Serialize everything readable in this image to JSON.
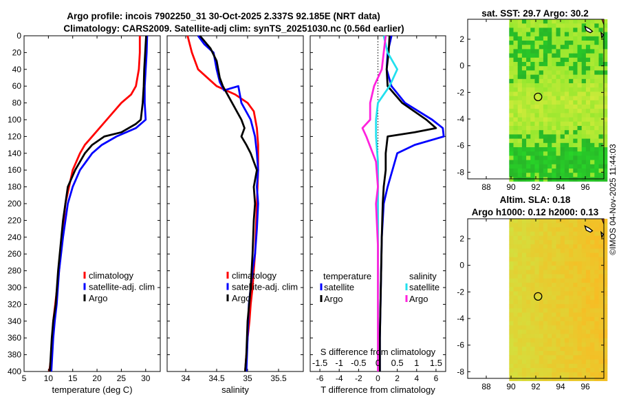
{
  "header": {
    "title_line1": "Argo profile: incois 7902250_31 30-Oct-2025 2.337S 92.185E (NRT data)",
    "title_line2": "Climatology: CARS2009. Satellite-adj clim: synTS_20251030.nc (0.56d earlier)"
  },
  "colors": {
    "climatology": "#ff0000",
    "satellite": "#0000ff",
    "argo": "#000000",
    "sal_satellite": "#22e0ee",
    "sal_argo": "#ff22dd"
  },
  "depth_ticks": [
    "0",
    "20",
    "40",
    "60",
    "80",
    "100",
    "120",
    "140",
    "160",
    "180",
    "200",
    "220",
    "240",
    "260",
    "280",
    "300",
    "320",
    "340",
    "360",
    "380",
    "400"
  ],
  "chart_data": [
    {
      "type": "line",
      "title": "",
      "xlabel": "temperature (deg C)",
      "ylabel": "",
      "xlim": [
        5,
        33
      ],
      "ylim": [
        0,
        400
      ],
      "y_reversed": true,
      "x_ticks": [
        "5",
        "10",
        "15",
        "20",
        "25",
        "30"
      ],
      "legend": [
        "climatology",
        "satellite-adj. clim",
        "Argo"
      ],
      "series": [
        {
          "name": "climatology",
          "color": "red",
          "x": [
            28.8,
            28.8,
            28.6,
            28.0,
            27.0,
            25.0,
            22.0,
            19.0,
            17.5,
            16.5,
            15.0,
            13.5,
            12.8,
            12.2,
            11.8,
            11.4,
            11.0,
            10.8,
            10.6,
            10.4,
            10.2
          ],
          "y": [
            0,
            20,
            40,
            60,
            70,
            80,
            100,
            120,
            130,
            140,
            160,
            200,
            240,
            280,
            300,
            320,
            340,
            360,
            380,
            390,
            400
          ]
        },
        {
          "name": "satellite-adj. clim",
          "color": "blue",
          "x": [
            30.3,
            30.2,
            30.0,
            29.8,
            29.8,
            30.0,
            28.0,
            24.0,
            21.0,
            19.0,
            16.5,
            15.0,
            14.0,
            13.0,
            12.2,
            11.7,
            11.3,
            11.0,
            10.8,
            10.6
          ],
          "y": [
            0,
            20,
            40,
            60,
            80,
            100,
            110,
            120,
            130,
            140,
            160,
            180,
            200,
            240,
            280,
            320,
            340,
            360,
            380,
            400
          ]
        },
        {
          "name": "Argo",
          "color": "black",
          "x": [
            30.1,
            29.9,
            29.7,
            29.6,
            29.4,
            29.0,
            28.0,
            25.0,
            21.5,
            19.0,
            17.5,
            15.5,
            14.0,
            13.0,
            12.0,
            11.5,
            11.0,
            10.7,
            10.5,
            10.3
          ],
          "y": [
            0,
            20,
            40,
            60,
            80,
            100,
            105,
            115,
            120,
            130,
            140,
            160,
            180,
            220,
            280,
            320,
            340,
            360,
            380,
            400
          ]
        }
      ]
    },
    {
      "type": "line",
      "title": "",
      "xlabel": "salinity",
      "ylabel": "",
      "xlim": [
        33.7,
        35.9
      ],
      "ylim": [
        0,
        400
      ],
      "y_reversed": true,
      "x_ticks": [
        "34",
        "34.5",
        "35",
        "35.5"
      ],
      "legend": [
        "climatology",
        "satellite-adj. clim",
        "Argo"
      ],
      "series": [
        {
          "name": "climatology",
          "color": "red",
          "x": [
            34.03,
            34.1,
            34.2,
            34.5,
            34.8,
            35.0,
            35.1,
            35.15,
            35.17,
            35.17,
            35.15,
            35.13,
            35.12,
            35.1,
            35.08,
            35.05,
            35.03,
            35.0,
            34.98,
            34.96
          ],
          "y": [
            0,
            20,
            40,
            60,
            70,
            80,
            90,
            110,
            130,
            160,
            200,
            240,
            260,
            280,
            300,
            320,
            340,
            360,
            380,
            400
          ]
        },
        {
          "name": "satellite-adj. clim",
          "color": "blue",
          "x": [
            34.2,
            34.3,
            34.45,
            34.5,
            34.55,
            34.62,
            34.85,
            34.9,
            35.05,
            35.12,
            35.15,
            35.17,
            35.15,
            35.17,
            35.15,
            35.12,
            35.08,
            35.05,
            35.02,
            35.0,
            34.98
          ],
          "y": [
            0,
            10,
            20,
            40,
            55,
            65,
            60,
            80,
            100,
            120,
            140,
            160,
            180,
            200,
            230,
            260,
            280,
            300,
            320,
            360,
            400
          ]
        },
        {
          "name": "Argo",
          "color": "black",
          "x": [
            34.23,
            34.4,
            34.5,
            34.55,
            34.6,
            34.75,
            34.9,
            34.95,
            34.9,
            34.98,
            35.05,
            35.1,
            35.15,
            35.1,
            35.12,
            35.1,
            35.08,
            35.05,
            35.0,
            34.98,
            34.96
          ],
          "y": [
            0,
            15,
            30,
            50,
            60,
            80,
            100,
            110,
            120,
            130,
            140,
            150,
            160,
            180,
            200,
            220,
            260,
            300,
            340,
            380,
            400
          ]
        }
      ]
    },
    {
      "type": "line",
      "title": "",
      "xlabel": "T difference from climatology",
      "ylabel": "",
      "xlim": [
        -7,
        7
      ],
      "ylim": [
        0,
        400
      ],
      "y_reversed": true,
      "x_ticks": [
        "-6",
        "-4",
        "-2",
        "0",
        "2",
        "4",
        "6"
      ],
      "top_axis_label": "S difference from climatology",
      "top_ticks": [
        "-1.5",
        "-1",
        "-0.5",
        "0",
        "0.5",
        "1",
        "1.5"
      ],
      "legend_temperature_title": "temperature",
      "legend_salinity_title": "salinity",
      "legend_entries": [
        "satellite",
        "Argo",
        "satellite",
        "Argo"
      ],
      "series": [
        {
          "name": "T satellite",
          "color": "blue",
          "x": [
            1.4,
            1.0,
            0.9,
            1.4,
            2.8,
            5.6,
            6.7,
            6.8,
            3.8,
            2.0,
            1.5,
            1.0,
            0.6,
            0.4,
            0.3,
            0.2,
            0.2
          ],
          "y": [
            0,
            20,
            40,
            60,
            80,
            100,
            110,
            120,
            130,
            140,
            160,
            180,
            200,
            240,
            300,
            360,
            400
          ]
        },
        {
          "name": "T Argo",
          "color": "black",
          "x": [
            1.2,
            1.1,
            0.9,
            1.0,
            2.5,
            5.0,
            6.0,
            3.8,
            1.0,
            0.8,
            0.8,
            0.6,
            0.5,
            0.4,
            0.3,
            0.2,
            0.2
          ],
          "y": [
            0,
            20,
            40,
            60,
            80,
            100,
            110,
            115,
            120,
            140,
            160,
            180,
            200,
            240,
            300,
            360,
            400
          ]
        },
        {
          "name": "S satellite",
          "color": "cyan",
          "x": [
            0.15,
            0.25,
            0.5,
            0.3,
            0.0,
            -0.05,
            -0.05,
            0.0,
            0.0,
            0.0,
            0.0
          ],
          "y": [
            0,
            20,
            40,
            60,
            80,
            100,
            120,
            150,
            200,
            300,
            400
          ]
        },
        {
          "name": "S Argo",
          "color": "magenta",
          "x": [
            0.2,
            0.15,
            0.1,
            -0.1,
            -0.2,
            -0.2,
            -0.4,
            -0.3,
            -0.05,
            0.0,
            -0.05,
            0.0,
            0.0,
            0.0
          ],
          "y": [
            0,
            20,
            40,
            60,
            80,
            100,
            110,
            120,
            150,
            180,
            200,
            250,
            300,
            400
          ]
        }
      ]
    },
    {
      "type": "heatmap",
      "title": "sat. SST: 29.7 Argo: 30.2",
      "x_ticks": [
        "88",
        "90",
        "92",
        "94",
        "96"
      ],
      "y_ticks": [
        "2",
        "0",
        "-2",
        "-4",
        "-6",
        "-8"
      ],
      "xlim": [
        86.5,
        97.5
      ],
      "ylim": [
        -8.5,
        3.5
      ],
      "argo_marker": [
        92.185,
        -2.337
      ]
    },
    {
      "type": "heatmap",
      "title_line1": "Altim. SLA: 0.18",
      "title_line2": "Argo h1000: 0.12 h2000: 0.13",
      "x_ticks": [
        "88",
        "90",
        "92",
        "94",
        "96"
      ],
      "y_ticks": [
        "2",
        "0",
        "-2",
        "-4",
        "-6",
        "-8"
      ],
      "xlim": [
        86.5,
        97.5
      ],
      "ylim": [
        -8.5,
        3.5
      ],
      "argo_marker": [
        92.185,
        -2.337
      ]
    }
  ],
  "footer": {
    "watermark": "©IMOS 04-Nov-2025 11:44:03"
  }
}
